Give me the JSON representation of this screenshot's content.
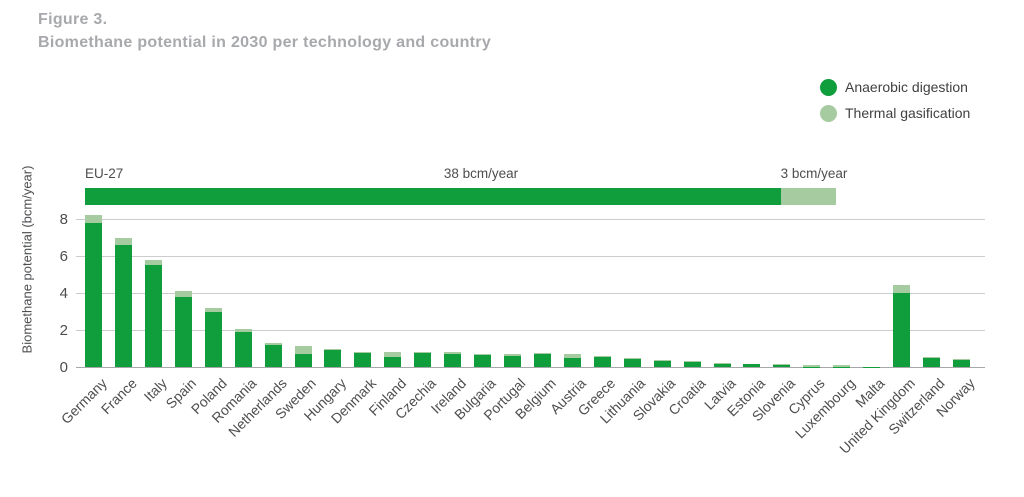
{
  "figure": {
    "label": "Figure 3.",
    "title": "Biomethane potential in 2030 per technology and country"
  },
  "legend": [
    {
      "label": "Anaerobic digestion",
      "color": "#109d3c"
    },
    {
      "label": "Thermal gasification",
      "color": "#a6cba0"
    }
  ],
  "colors": {
    "anaerobic_digestion": "#109d3c",
    "thermal_gasification": "#a6cba0",
    "title_gray": "#a7a9ac",
    "axis_text": "#4d4e50",
    "gridline": "#cbccce"
  },
  "chart_data": {
    "type": "bar",
    "stacked": true,
    "title": "Biomethane potential in 2030 per technology and country",
    "xlabel": "",
    "ylabel": "Biomethane potential (bcm/year)",
    "yticks": [
      0,
      2,
      4,
      6,
      8
    ],
    "ylim": [
      0,
      8.8
    ],
    "grid": true,
    "legend_position": "top-right",
    "categories": [
      "Germany",
      "France",
      "Italy",
      "Spain",
      "Poland",
      "Romania",
      "Netherlands",
      "Sweden",
      "Hungary",
      "Denmark",
      "Finland",
      "Czechia",
      "Ireland",
      "Bulgaria",
      "Portugal",
      "Belgium",
      "Austria",
      "Greece",
      "Lithuania",
      "Slovakia",
      "Croatia",
      "Latvia",
      "Estonia",
      "Slovenia",
      "Cyprus",
      "Luxembourg",
      "Malta",
      "United Kingdom",
      "Switzerland",
      "Norway"
    ],
    "series": [
      {
        "name": "Anaerobic digestion",
        "color": "#109d3c",
        "values": [
          7.8,
          6.6,
          5.5,
          3.8,
          3.0,
          1.9,
          1.2,
          0.7,
          0.95,
          0.75,
          0.55,
          0.75,
          0.7,
          0.7,
          0.6,
          0.72,
          0.5,
          0.58,
          0.45,
          0.35,
          0.28,
          0.2,
          0.15,
          0.12,
          0.02,
          0.02,
          0.01,
          4.0,
          0.5,
          0.4
        ]
      },
      {
        "name": "Thermal gasification",
        "color": "#a6cba0",
        "values": [
          0.4,
          0.35,
          0.3,
          0.3,
          0.2,
          0.15,
          0.1,
          0.45,
          0.05,
          0.05,
          0.25,
          0.05,
          0.1,
          0.03,
          0.12,
          0.03,
          0.2,
          0.02,
          0.02,
          0.02,
          0.02,
          0.02,
          0.0,
          0.03,
          0.1,
          0.08,
          0.0,
          0.45,
          0.05,
          0.05
        ]
      }
    ],
    "eu27_bar": {
      "label": "EU-27",
      "ad_label": "38 bcm/year",
      "tg_label": "3 bcm/year",
      "ad_value": 38,
      "tg_value": 3
    }
  }
}
